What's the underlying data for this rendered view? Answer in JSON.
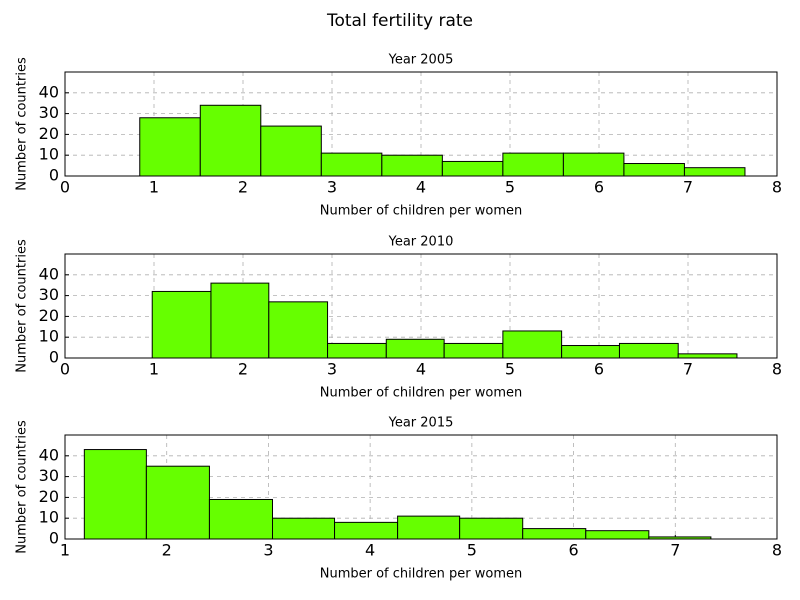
{
  "title": "Total fertility rate",
  "chart_data": [
    {
      "type": "histogram",
      "title": "Year 2005",
      "xlabel": "Number of children per women",
      "ylabel": "Number of countries",
      "bins": [
        0.84,
        1.52,
        2.2,
        2.88,
        3.56,
        4.24,
        4.92,
        5.6,
        6.28,
        6.96,
        7.64
      ],
      "counts": [
        28,
        34,
        24,
        11,
        10,
        7,
        11,
        11,
        6,
        4
      ],
      "color": "#66ff00",
      "xlim": [
        0,
        8
      ],
      "xticks": [
        0,
        1,
        2,
        3,
        4,
        5,
        6,
        7,
        8
      ],
      "ylim": [
        0,
        50
      ],
      "yticks": [
        0,
        10,
        20,
        30,
        40
      ],
      "grid": true
    },
    {
      "type": "histogram",
      "title": "Year 2010",
      "xlabel": "Number of children per women",
      "ylabel": "Number of countries",
      "bins": [
        0.98,
        1.64,
        2.29,
        2.95,
        3.61,
        4.26,
        4.92,
        5.58,
        6.23,
        6.89,
        7.55
      ],
      "counts": [
        32,
        36,
        27,
        7,
        9,
        7,
        13,
        6,
        7,
        2
      ],
      "color": "#66ff00",
      "xlim": [
        0,
        8
      ],
      "xticks": [
        0,
        1,
        2,
        3,
        4,
        5,
        6,
        7,
        8
      ],
      "ylim": [
        0,
        50
      ],
      "yticks": [
        0,
        10,
        20,
        30,
        40
      ],
      "grid": true
    },
    {
      "type": "histogram",
      "title": "Year 2015",
      "xlabel": "Number of children per women",
      "ylabel": "Number of countries",
      "bins": [
        1.19,
        1.8,
        2.42,
        3.04,
        3.65,
        4.27,
        4.88,
        5.5,
        6.12,
        6.74,
        7.35
      ],
      "counts": [
        43,
        35,
        19,
        10,
        8,
        11,
        10,
        5,
        4,
        1
      ],
      "color": "#66ff00",
      "xlim": [
        1,
        8
      ],
      "xticks": [
        1,
        2,
        3,
        4,
        5,
        6,
        7,
        8
      ],
      "ylim": [
        0,
        50
      ],
      "yticks": [
        0,
        10,
        20,
        30,
        40
      ],
      "grid": true
    }
  ]
}
